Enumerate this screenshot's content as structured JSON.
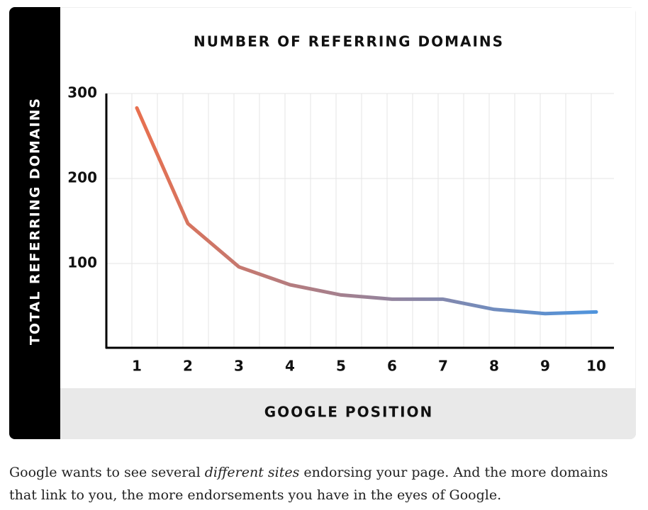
{
  "chart_data": {
    "type": "line",
    "title": "NUMBER OF REFERRING DOMAINS",
    "x_label": "GOOGLE POSITION",
    "y_label": "TOTAL REFERRING DOMAINS",
    "categories": [
      "1",
      "2",
      "3",
      "4",
      "5",
      "6",
      "7",
      "8",
      "9",
      "10"
    ],
    "values": [
      283,
      147,
      96,
      75,
      63,
      58,
      58,
      46,
      41,
      43
    ],
    "gradient": [
      "#e8704f",
      "#4f94dd"
    ],
    "ylim": [
      0,
      300
    ],
    "yticks": [
      100,
      200,
      300
    ],
    "grid": true
  },
  "text": {
    "before": "Google wants to see several ",
    "emphasis": "different sites",
    "after": " endorsing your page. And the more domains that link to you, the more endorsements you have in the eyes of Google."
  }
}
